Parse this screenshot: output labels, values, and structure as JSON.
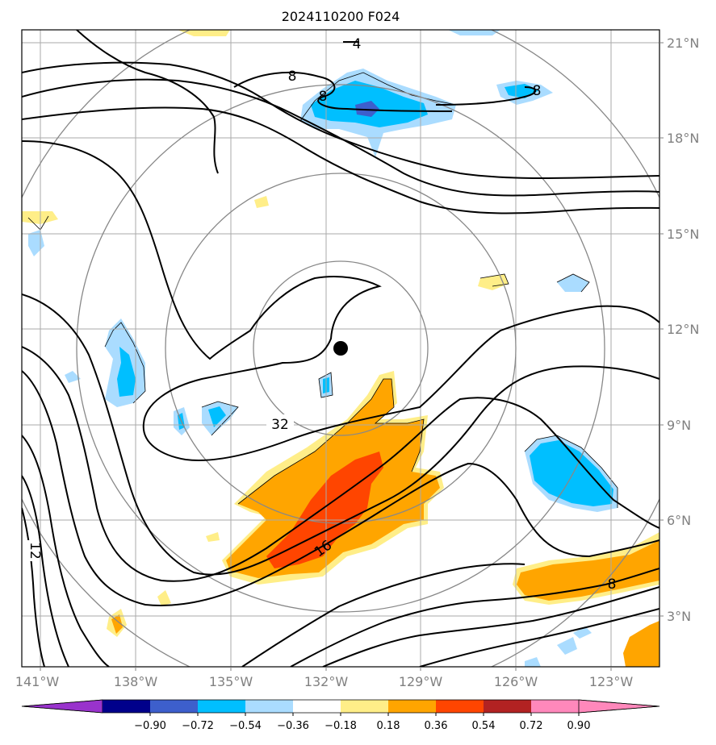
{
  "title": "2024110200 F024",
  "lat_labels": [
    "21°N",
    "18°N",
    "15°N",
    "12°N",
    "9°N",
    "6°N",
    "3°N"
  ],
  "lon_labels": [
    "141°W",
    "138°W",
    "135°W",
    "132°W",
    "129°W",
    "126°W",
    "123°W"
  ],
  "contour_labels": [
    "4",
    "8",
    "8",
    "8",
    "32",
    "16",
    "12",
    "8"
  ],
  "colorbar": {
    "ticks": [
      "−0.90",
      "−0.72",
      "−0.54",
      "−0.36",
      "−0.18",
      "0.18",
      "0.36",
      "0.54",
      "0.72",
      "0.90"
    ],
    "colors": [
      "#9933cc",
      "#00008b",
      "#3d5fcc",
      "#00bfff",
      "#aadcff",
      "#ffffff",
      "#ffee88",
      "#ffa500",
      "#ff4500",
      "#b22222",
      "#ff88bb",
      "#ff88bb"
    ]
  },
  "storm_center": {
    "lat": 11.5,
    "lon": "131.5°W"
  }
}
